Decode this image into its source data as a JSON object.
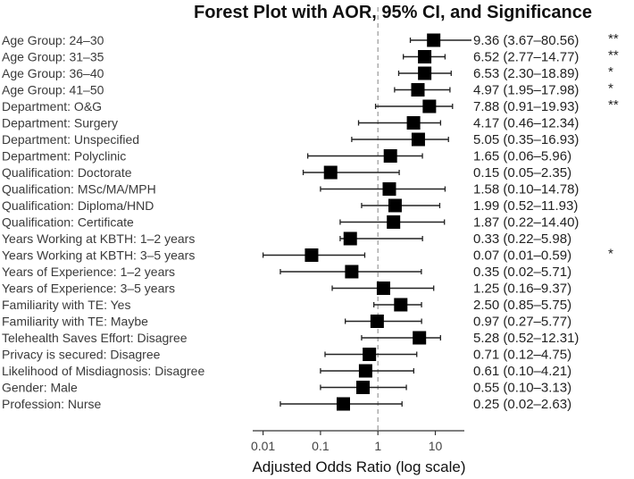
{
  "chart_data": {
    "type": "forest",
    "title": "Forest Plot with AOR, 95% CI, and Significance",
    "xlabel": "Adjusted Odds Ratio (log scale)",
    "x_scale": "log",
    "xlim": [
      0.0066,
      32
    ],
    "x_ticks": [
      0.01,
      0.1,
      1,
      10
    ],
    "x_tick_labels": [
      "0.01",
      "0.1",
      "1",
      "10"
    ],
    "reference_line": 1,
    "grid": false,
    "marker_color": "#000000",
    "rows": [
      {
        "label": "Age Group: 24–30",
        "aor": 9.36,
        "lo": 3.67,
        "hi": 80.56,
        "text": "9.36 (3.67–80.56)",
        "sig": "**"
      },
      {
        "label": "Age Group: 31–35",
        "aor": 6.52,
        "lo": 2.77,
        "hi": 14.77,
        "text": "6.52 (2.77–14.77)",
        "sig": "**"
      },
      {
        "label": "Age Group: 36–40",
        "aor": 6.53,
        "lo": 2.3,
        "hi": 18.89,
        "text": "6.53 (2.30–18.89)",
        "sig": "*"
      },
      {
        "label": "Age Group: 41–50",
        "aor": 4.97,
        "lo": 1.95,
        "hi": 17.98,
        "text": "4.97 (1.95–17.98)",
        "sig": "*"
      },
      {
        "label": "Department: O&G",
        "aor": 7.88,
        "lo": 0.91,
        "hi": 19.93,
        "text": "7.88 (0.91–19.93)",
        "sig": "**"
      },
      {
        "label": "Department: Surgery",
        "aor": 4.17,
        "lo": 0.46,
        "hi": 12.34,
        "text": "4.17 (0.46–12.34)",
        "sig": ""
      },
      {
        "label": "Department: Unspecified",
        "aor": 5.05,
        "lo": 0.35,
        "hi": 16.93,
        "text": "5.05 (0.35–16.93)",
        "sig": ""
      },
      {
        "label": "Department: Polyclinic",
        "aor": 1.65,
        "lo": 0.06,
        "hi": 5.96,
        "text": "1.65 (0.06–5.96)",
        "sig": ""
      },
      {
        "label": "Qualification: Doctorate",
        "aor": 0.15,
        "lo": 0.05,
        "hi": 2.35,
        "text": "0.15 (0.05–2.35)",
        "sig": ""
      },
      {
        "label": "Qualification: MSc/MA/MPH",
        "aor": 1.58,
        "lo": 0.1,
        "hi": 14.78,
        "text": "1.58 (0.10–14.78)",
        "sig": ""
      },
      {
        "label": "Qualification: Diploma/HND",
        "aor": 1.99,
        "lo": 0.52,
        "hi": 11.93,
        "text": "1.99 (0.52–11.93)",
        "sig": ""
      },
      {
        "label": "Qualification: Certificate",
        "aor": 1.87,
        "lo": 0.22,
        "hi": 14.4,
        "text": "1.87 (0.22–14.40)",
        "sig": ""
      },
      {
        "label": "Years Working at KBTH: 1–2 years",
        "aor": 0.33,
        "lo": 0.22,
        "hi": 5.98,
        "text": "0.33 (0.22–5.98)",
        "sig": ""
      },
      {
        "label": "Years Working at KBTH: 3–5 years",
        "aor": 0.07,
        "lo": 0.01,
        "hi": 0.59,
        "text": "0.07 (0.01–0.59)",
        "sig": "*"
      },
      {
        "label": "Years of Experience: 1–2 years",
        "aor": 0.35,
        "lo": 0.02,
        "hi": 5.71,
        "text": "0.35 (0.02–5.71)",
        "sig": ""
      },
      {
        "label": "Years of Experience: 3–5 years",
        "aor": 1.25,
        "lo": 0.16,
        "hi": 9.37,
        "text": "1.25 (0.16–9.37)",
        "sig": ""
      },
      {
        "label": "Familiarity with TE: Yes",
        "aor": 2.5,
        "lo": 0.85,
        "hi": 5.75,
        "text": "2.50 (0.85–5.75)",
        "sig": ""
      },
      {
        "label": "Familiarity with TE: Maybe",
        "aor": 0.97,
        "lo": 0.27,
        "hi": 5.77,
        "text": "0.97 (0.27–5.77)",
        "sig": ""
      },
      {
        "label": "Telehealth Saves Effort: Disagree",
        "aor": 5.28,
        "lo": 0.52,
        "hi": 12.31,
        "text": "5.28 (0.52–12.31)",
        "sig": ""
      },
      {
        "label": "Privacy is secured: Disagree",
        "aor": 0.71,
        "lo": 0.12,
        "hi": 4.75,
        "text": "0.71 (0.12–4.75)",
        "sig": ""
      },
      {
        "label": "Likelihood of Misdiagnosis: Disagree",
        "aor": 0.61,
        "lo": 0.1,
        "hi": 4.21,
        "text": "0.61 (0.10–4.21)",
        "sig": ""
      },
      {
        "label": "Gender: Male",
        "aor": 0.55,
        "lo": 0.1,
        "hi": 3.13,
        "text": "0.55 (0.10–3.13)",
        "sig": ""
      },
      {
        "label": "Profession: Nurse",
        "aor": 0.25,
        "lo": 0.02,
        "hi": 2.63,
        "text": "0.25 (0.02–2.63)",
        "sig": ""
      }
    ]
  }
}
